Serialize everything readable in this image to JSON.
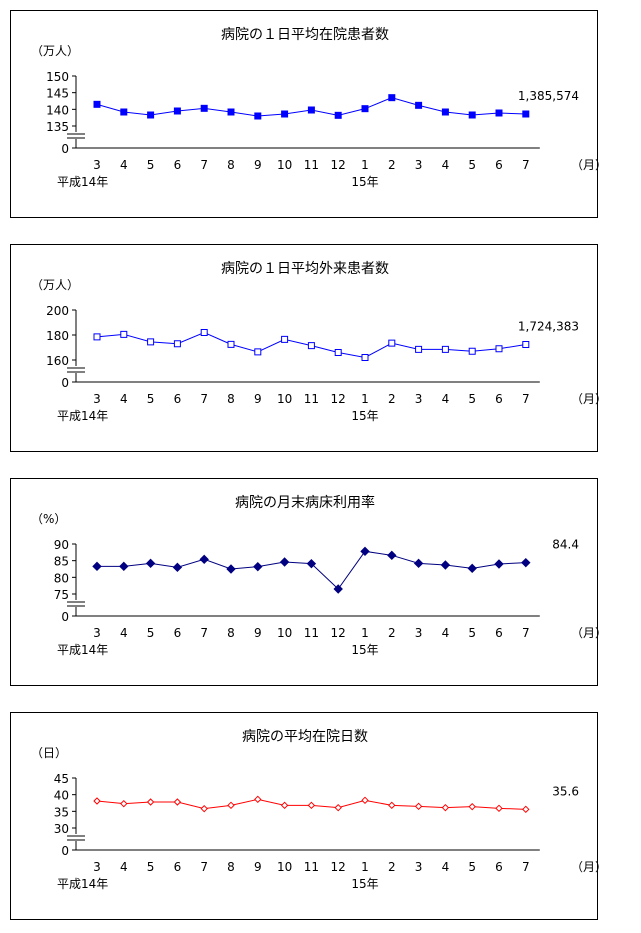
{
  "charts": [
    {
      "title": "病院の１日平均在院患者数",
      "unit": "（万人）",
      "month_unit": "（月）",
      "year_start_label": "平成14年",
      "year_mid_label": "15年",
      "value_label": "1,385,574",
      "color": "#0000ff",
      "marker": "filled-square"
    },
    {
      "title": "病院の１日平均外来患者数",
      "unit": "（万人）",
      "month_unit": "（月）",
      "year_start_label": "平成14年",
      "year_mid_label": "15年",
      "value_label": "1,724,383",
      "color": "#0000ff",
      "marker": "open-square"
    },
    {
      "title": "病院の月末病床利用率",
      "unit": "（%）",
      "month_unit": "（月）",
      "year_start_label": "平成14年",
      "year_mid_label": "15年",
      "value_label": "84.4",
      "color": "#000080",
      "marker": "filled-diamond"
    },
    {
      "title": "病院の平均在院日数",
      "unit": "（日）",
      "month_unit": "（月）",
      "year_start_label": "平成14年",
      "year_mid_label": "15年",
      "value_label": "35.6",
      "color": "#ff0000",
      "marker": "open-diamond"
    }
  ],
  "chart_data": [
    {
      "type": "line",
      "title": "病院の１日平均在院患者数",
      "ylabel": "（万人）",
      "categories": [
        "3",
        "4",
        "5",
        "6",
        "7",
        "8",
        "9",
        "10",
        "11",
        "12",
        "1",
        "2",
        "3",
        "4",
        "5",
        "6",
        "7"
      ],
      "yticks": [
        0,
        135,
        140,
        145,
        150
      ],
      "ylim": [
        135,
        150
      ],
      "axis_break": true,
      "values": [
        141.5,
        139.2,
        138.3,
        139.5,
        140.3,
        139.2,
        138.0,
        138.6,
        139.8,
        138.2,
        140.2,
        143.5,
        141.2,
        139.2,
        138.3,
        138.9,
        138.6
      ]
    },
    {
      "type": "line",
      "title": "病院の１日平均外来患者数",
      "ylabel": "（万人）",
      "categories": [
        "3",
        "4",
        "5",
        "6",
        "7",
        "8",
        "9",
        "10",
        "11",
        "12",
        "1",
        "2",
        "3",
        "4",
        "5",
        "6",
        "7"
      ],
      "yticks": [
        0,
        160,
        180,
        200
      ],
      "ylim": [
        160,
        200
      ],
      "axis_break": true,
      "values": [
        178.5,
        180.5,
        174.5,
        173,
        182,
        172.5,
        166.5,
        176.5,
        171.5,
        166,
        162,
        173.5,
        168.5,
        168.5,
        167,
        169,
        172.4
      ]
    },
    {
      "type": "line",
      "title": "病院の月末病床利用率",
      "ylabel": "（%）",
      "categories": [
        "3",
        "4",
        "5",
        "6",
        "7",
        "8",
        "9",
        "10",
        "11",
        "12",
        "1",
        "2",
        "3",
        "4",
        "5",
        "6",
        "7"
      ],
      "yticks": [
        0,
        75,
        80,
        85,
        90
      ],
      "ylim": [
        75,
        90
      ],
      "axis_break": true,
      "values": [
        83.3,
        83.3,
        84.2,
        83.0,
        85.4,
        82.5,
        83.2,
        84.6,
        84.1,
        76.5,
        87.8,
        86.6,
        84.2,
        83.7,
        82.7,
        84.0,
        84.4
      ]
    },
    {
      "type": "line",
      "title": "病院の平均在院日数",
      "ylabel": "（日）",
      "categories": [
        "3",
        "4",
        "5",
        "6",
        "7",
        "8",
        "9",
        "10",
        "11",
        "12",
        "1",
        "2",
        "3",
        "4",
        "5",
        "6",
        "7"
      ],
      "yticks": [
        0,
        30,
        35,
        40,
        45
      ],
      "ylim": [
        30,
        45
      ],
      "axis_break": true,
      "values": [
        38.1,
        37.3,
        37.8,
        37.8,
        35.8,
        36.8,
        38.6,
        36.8,
        36.8,
        36.1,
        38.3,
        36.8,
        36.5,
        36.1,
        36.4,
        35.9,
        35.6
      ]
    }
  ]
}
